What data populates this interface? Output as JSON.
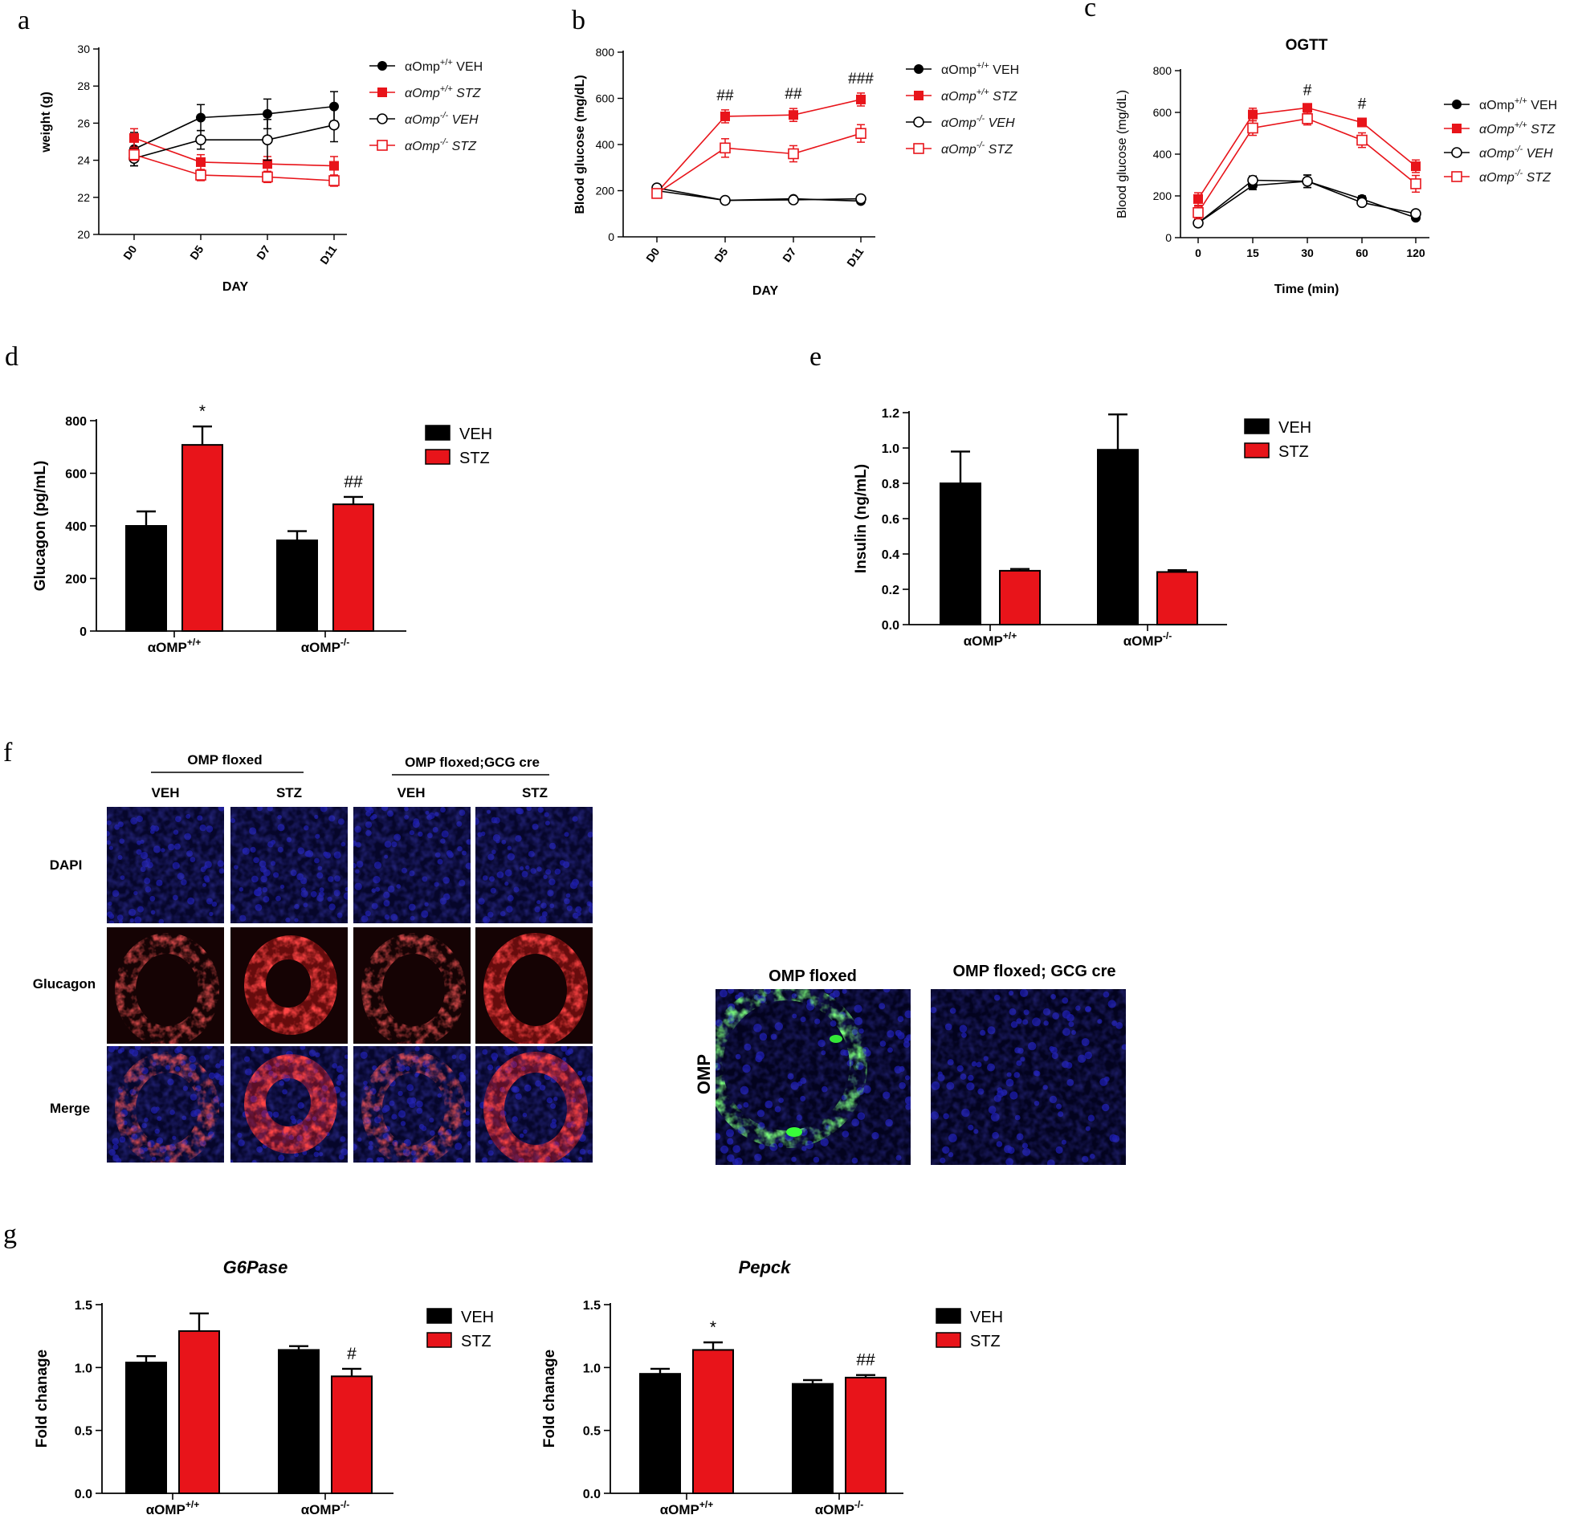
{
  "panel_letters": [
    "a",
    "b",
    "c",
    "d",
    "e",
    "f",
    "g"
  ],
  "colors": {
    "black": "#000000",
    "red": "#e8141a",
    "dapi": "#0a0a55",
    "glucagon": "#ff2020",
    "omp": "#2be82b"
  },
  "legend_lines": [
    {
      "pre": "αOmp",
      "sup": "+/+",
      "post": " VEH",
      "italic": false
    },
    {
      "pre": "αOmp",
      "sup": "+/+",
      "post": " STZ",
      "italic": true
    },
    {
      "pre": "αOmp",
      "sup": "-/-",
      "post": " VEH",
      "italic": true
    },
    {
      "pre": "αOmp",
      "sup": "-/-",
      "post": " STZ",
      "italic": true
    }
  ],
  "chart_data": [
    {
      "panel": "a",
      "type": "line",
      "title": "",
      "xlabel": "DAY",
      "ylabel": "weight (g)",
      "categories": [
        "D0",
        "D5",
        "D7",
        "D11"
      ],
      "ylim": [
        20,
        30
      ],
      "yticks": [
        20,
        22,
        24,
        26,
        28,
        30
      ],
      "series": [
        {
          "name": "αOmp+/+ VEH",
          "color": "#000000",
          "marker": "filled-circle",
          "values": [
            24.6,
            26.3,
            26.5,
            26.9
          ],
          "err": [
            0.9,
            0.7,
            0.8,
            0.8
          ]
        },
        {
          "name": "αOmp+/+ STZ",
          "color": "#e8141a",
          "marker": "filled-square",
          "values": [
            25.2,
            23.9,
            23.8,
            23.7
          ],
          "err": [
            0.5,
            0.4,
            0.4,
            0.5
          ]
        },
        {
          "name": "αOmp-/- VEH",
          "color": "#000000",
          "marker": "open-circle",
          "values": [
            24.1,
            25.1,
            25.1,
            25.9
          ],
          "err": [
            0.4,
            0.5,
            1.1,
            0.9
          ]
        },
        {
          "name": "αOmp-/- STZ",
          "color": "#e8141a",
          "marker": "open-square",
          "values": [
            24.3,
            23.2,
            23.1,
            22.9
          ],
          "err": [
            0.3,
            0.3,
            0.3,
            0.3
          ]
        }
      ]
    },
    {
      "panel": "b",
      "type": "line",
      "title": "",
      "xlabel": "DAY",
      "ylabel": "Blood glucose (mg/dL)",
      "categories": [
        "D0",
        "D5",
        "D7",
        "D11"
      ],
      "ylim": [
        0,
        800
      ],
      "yticks": [
        0,
        200,
        400,
        600,
        800
      ],
      "annotations": [
        "",
        "##",
        "##",
        "###"
      ],
      "series": [
        {
          "name": "αOmp+/+ VEH",
          "color": "#000000",
          "marker": "filled-circle",
          "values": [
            200,
            158,
            165,
            155
          ],
          "err": [
            10,
            8,
            8,
            8
          ]
        },
        {
          "name": "αOmp+/+ STZ",
          "color": "#e8141a",
          "marker": "filled-square",
          "values": [
            192,
            522,
            528,
            595
          ],
          "err": [
            12,
            28,
            28,
            28
          ]
        },
        {
          "name": "αOmp-/- VEH",
          "color": "#000000",
          "marker": "open-circle",
          "values": [
            212,
            158,
            160,
            165
          ],
          "err": [
            12,
            8,
            8,
            8
          ]
        },
        {
          "name": "αOmp-/- STZ",
          "color": "#e8141a",
          "marker": "open-square",
          "values": [
            188,
            385,
            360,
            448
          ],
          "err": [
            12,
            40,
            35,
            38
          ]
        }
      ]
    },
    {
      "panel": "c",
      "type": "line",
      "title": "OGTT",
      "xlabel": "Time (min)",
      "ylabel": "Blood glucose (mg/dL)",
      "categories": [
        "0",
        "15",
        "30",
        "60",
        "120"
      ],
      "ylim": [
        0,
        800
      ],
      "yticks": [
        0,
        200,
        400,
        600,
        800
      ],
      "annotations": [
        "",
        "",
        "#",
        "#",
        ""
      ],
      "series": [
        {
          "name": "αOmp+/+ VEH",
          "color": "#000000",
          "marker": "filled-circle",
          "values": [
            70,
            250,
            270,
            185,
            95
          ],
          "err": [
            10,
            20,
            30,
            15,
            10
          ]
        },
        {
          "name": "αOmp+/+ STZ",
          "color": "#e8141a",
          "marker": "filled-square",
          "values": [
            185,
            590,
            622,
            552,
            342
          ],
          "err": [
            30,
            30,
            15,
            20,
            30
          ]
        },
        {
          "name": "αOmp-/- VEH",
          "color": "#000000",
          "marker": "open-circle",
          "values": [
            70,
            275,
            270,
            168,
            115
          ],
          "err": [
            10,
            20,
            30,
            15,
            10
          ]
        },
        {
          "name": "αOmp-/- STZ",
          "color": "#e8141a",
          "marker": "open-square",
          "values": [
            120,
            525,
            570,
            467,
            258
          ],
          "err": [
            30,
            35,
            30,
            35,
            40
          ]
        }
      ]
    },
    {
      "panel": "d",
      "type": "bar",
      "title": "",
      "xlabel": "",
      "ylabel": "Glucagon  (pg/mL)",
      "categories": [
        {
          "base": "αOMP",
          "sup": "+/+"
        },
        {
          "base": "αOMP",
          "sup": "-/-"
        }
      ],
      "ylim": [
        0,
        800
      ],
      "yticks": [
        0,
        200,
        400,
        600,
        800
      ],
      "legend": [
        "VEH",
        "STZ"
      ],
      "series": [
        {
          "name": "VEH",
          "color": "#000000",
          "values": [
            400,
            345
          ],
          "err": [
            55,
            35
          ],
          "labels": [
            "",
            ""
          ]
        },
        {
          "name": "STZ",
          "color": "#e8141a",
          "values": [
            708,
            482
          ],
          "err": [
            70,
            28
          ],
          "labels": [
            "*",
            "##"
          ]
        }
      ]
    },
    {
      "panel": "e",
      "type": "bar",
      "title": "",
      "xlabel": "",
      "ylabel": "Insulin  (ng/mL)",
      "categories": [
        {
          "base": "αOMP",
          "sup": "+/+"
        },
        {
          "base": "αOMP",
          "sup": "-/-"
        }
      ],
      "ylim": [
        0,
        1.2
      ],
      "yticks": [
        "0.0",
        "0.2",
        "0.4",
        "0.6",
        "0.8",
        "1.0",
        "1.2"
      ],
      "legend": [
        "VEH",
        "STZ"
      ],
      "series": [
        {
          "name": "VEH",
          "color": "#000000",
          "values": [
            0.8,
            0.99
          ],
          "err": [
            0.18,
            0.2
          ],
          "labels": [
            "",
            ""
          ]
        },
        {
          "name": "STZ",
          "color": "#e8141a",
          "values": [
            0.305,
            0.298
          ],
          "err": [
            0.01,
            0.01
          ],
          "labels": [
            "",
            ""
          ]
        }
      ]
    },
    {
      "panel": "g1",
      "type": "bar",
      "title": "G6Pase",
      "xlabel": "",
      "ylabel": "Fold chanage",
      "categories": [
        {
          "base": "αOMP",
          "sup": "+/+"
        },
        {
          "base": "αOMP",
          "sup": "-/-"
        }
      ],
      "ylim": [
        0,
        1.5
      ],
      "yticks": [
        "0.0",
        "0.5",
        "1.0",
        "1.5"
      ],
      "legend": [
        "VEH",
        "STZ"
      ],
      "series": [
        {
          "name": "VEH",
          "color": "#000000",
          "values": [
            1.04,
            1.14
          ],
          "err": [
            0.05,
            0.03
          ],
          "labels": [
            "",
            ""
          ]
        },
        {
          "name": "STZ",
          "color": "#e8141a",
          "values": [
            1.29,
            0.93
          ],
          "err": [
            0.14,
            0.06
          ],
          "labels": [
            "",
            "#"
          ]
        }
      ]
    },
    {
      "panel": "g2",
      "type": "bar",
      "title": "Pepck",
      "xlabel": "",
      "ylabel": "Fold chanage",
      "categories": [
        {
          "base": "αOMP",
          "sup": "+/+"
        },
        {
          "base": "αOMP",
          "sup": "-/-"
        }
      ],
      "ylim": [
        0,
        1.5
      ],
      "yticks": [
        "0.0",
        "0.5",
        "1.0",
        "1.5"
      ],
      "legend": [
        "VEH",
        "STZ"
      ],
      "series": [
        {
          "name": "VEH",
          "color": "#000000",
          "values": [
            0.95,
            0.87
          ],
          "err": [
            0.04,
            0.03
          ],
          "labels": [
            "",
            ""
          ]
        },
        {
          "name": "STZ",
          "color": "#e8141a",
          "values": [
            1.14,
            0.92
          ],
          "err": [
            0.06,
            0.02
          ],
          "labels": [
            "*",
            "##"
          ]
        }
      ]
    }
  ],
  "panel_f": {
    "groups": [
      "OMP floxed",
      "OMP floxed;GCG cre"
    ],
    "columns": [
      "VEH",
      "STZ",
      "VEH",
      "STZ"
    ],
    "rows": [
      "DAPI",
      "Glucagon",
      "Merge"
    ],
    "omp_titles": [
      "OMP floxed",
      "OMP floxed; GCG cre"
    ],
    "omp_row_label": "OMP"
  }
}
